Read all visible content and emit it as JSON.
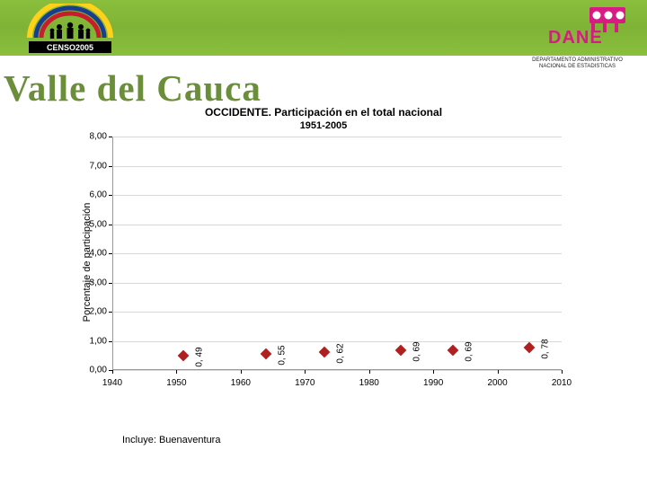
{
  "header": {
    "censo_year": "CENSO2005",
    "dane_text": "DANE",
    "dane_caption_line1": "DEPARTAMENTO ADMINISTRATIVO",
    "dane_caption_line2": "NACIONAL DE ESTADISTICAS",
    "bar_color": "#8abf3c"
  },
  "title": {
    "text": "Valle del Cauca",
    "color": "#6b8e3a",
    "fontsize": 41
  },
  "chart": {
    "type": "scatter",
    "title": "OCCIDENTE.  Participación en el total nacional",
    "subtitle": "1951-2005",
    "y_label": "Porcentaje de participación",
    "y_ticks": [
      "0,00",
      "1,00",
      "2,00",
      "3,00",
      "4,00",
      "5,00",
      "6,00",
      "7,00",
      "8,00"
    ],
    "y_min": 0,
    "y_max": 8,
    "x_ticks": [
      "1940",
      "1950",
      "1960",
      "1970",
      "1980",
      "1990",
      "2000",
      "2010"
    ],
    "x_min": 1940,
    "x_max": 2010,
    "marker_color": "#b02020",
    "marker_shape": "diamond",
    "marker_size": 9,
    "grid_color": "#d8d8d8",
    "background_color": "#ffffff",
    "series": [
      {
        "x": 1951,
        "y": 0.49,
        "label": "0, 49"
      },
      {
        "x": 1964,
        "y": 0.55,
        "label": "0, 55"
      },
      {
        "x": 1973,
        "y": 0.62,
        "label": "0, 62"
      },
      {
        "x": 1985,
        "y": 0.69,
        "label": "0, 69"
      },
      {
        "x": 1993,
        "y": 0.69,
        "label": "0, 69"
      },
      {
        "x": 2005,
        "y": 0.78,
        "label": "0, 78"
      }
    ]
  },
  "footnote": "Incluye: Buenaventura"
}
